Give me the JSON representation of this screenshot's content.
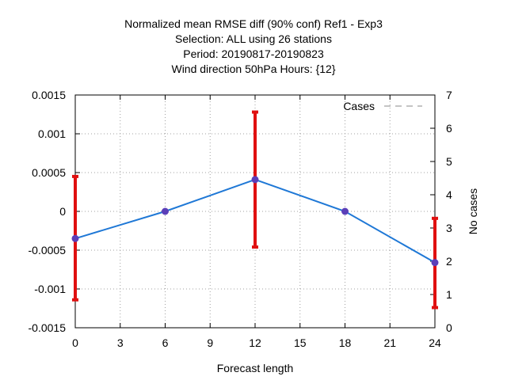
{
  "chart_data": {
    "type": "line",
    "title_lines": [
      "Normalized mean RMSE diff (90% conf) Ref1 - Exp3",
      "Selection: ALL using    26 stations",
      "Period: 20190817-20190823",
      "Wind direction 50hPa   Hours: {12}"
    ],
    "xlabel": "Forecast length",
    "ylabel": "",
    "y2label": "No cases",
    "xlim": [
      0,
      24
    ],
    "ylim": [
      -0.0015,
      0.0015
    ],
    "y2lim": [
      0,
      7
    ],
    "xticks": [
      "0",
      "3",
      "6",
      "9",
      "12",
      "15",
      "18",
      "21",
      "24"
    ],
    "yticks": [
      "-0.0015",
      "-0.001",
      "-0.0005",
      "0",
      "0.0005",
      "0.001",
      "0.0015"
    ],
    "y2ticks": [
      "0",
      "1",
      "2",
      "3",
      "4",
      "5",
      "6",
      "7"
    ],
    "grid": true,
    "legend": {
      "position": "top-right",
      "entries": [
        "Cases"
      ]
    },
    "series": [
      {
        "role": "mean-diff",
        "color": "#1f78d6",
        "marker_color": "#5b3fb8",
        "x": [
          0,
          6,
          12,
          18,
          24
        ],
        "y": [
          -0.00035,
          0.0,
          0.00041,
          0.0,
          -0.00066
        ],
        "err_low": [
          -0.00114,
          0.0,
          -0.00046,
          0.0,
          -0.00124
        ],
        "err_high": [
          0.00045,
          0.0,
          0.00128,
          0.0,
          -9e-05
        ],
        "err_color": "#e01010"
      },
      {
        "name": "Cases",
        "role": "cases",
        "color": "#a0a0a0",
        "axis": "y2",
        "x": [],
        "y": []
      }
    ]
  }
}
